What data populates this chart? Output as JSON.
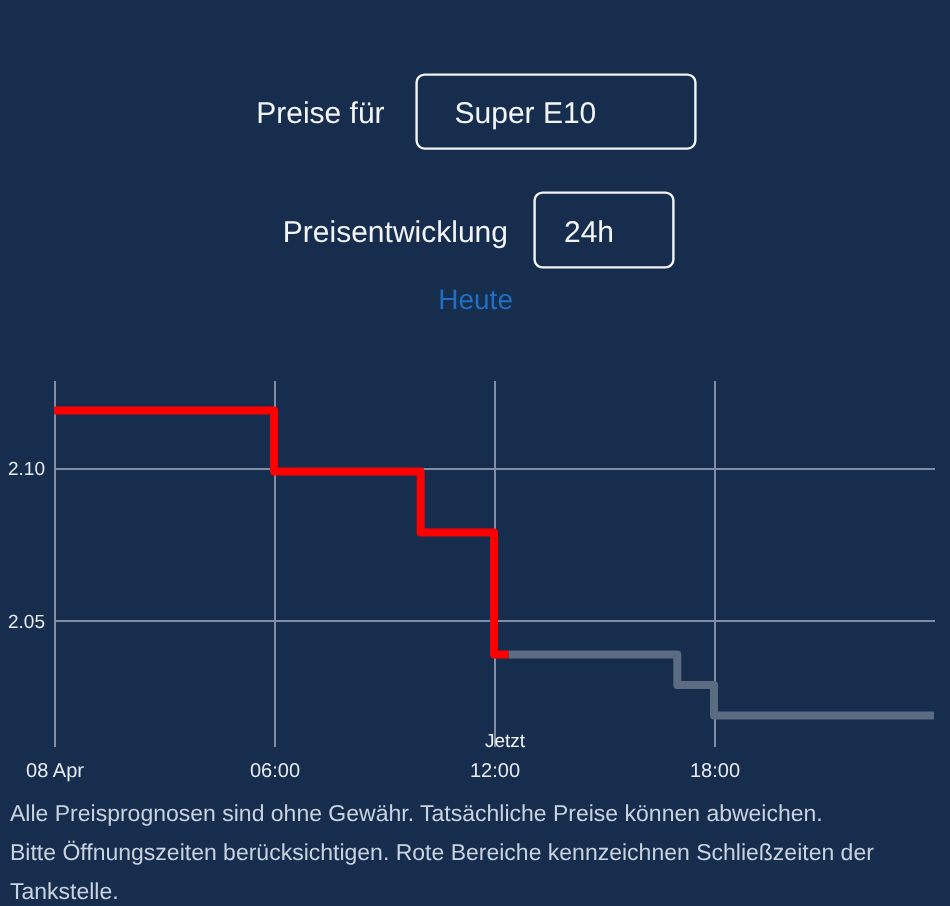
{
  "chart_data": {
    "type": "step",
    "title": "Preisentwicklung",
    "subtitle": "Heute",
    "annotations": [
      "Preise für",
      "Super E10",
      "24h",
      "Jetzt",
      "Alle Preisprognosen sind ohne Gewähr. Tatsächliche Preise können abweichen.",
      "Bitte Öffnungszeiten berücksichtigen. Rote Bereiche kennzeichnen Schließzeiten der Tankstelle."
    ],
    "series": [
      {
        "color": "#ff0000",
        "x": [
          0,
          6,
          10,
          12,
          12.4
        ],
        "values": [
          2.119,
          2.099,
          2.079,
          2.039,
          2.039
        ]
      },
      {
        "color": "#5b6b82",
        "x": [
          12.4,
          17,
          18,
          24
        ],
        "values": [
          2.039,
          2.029,
          2.019,
          2.019
        ]
      }
    ],
    "xlim": [
      0,
      24
    ],
    "xticks": [
      {
        "value": 0,
        "label": "08 Apr"
      },
      {
        "value": 6,
        "label": "06:00"
      },
      {
        "value": 12,
        "label": "12:00"
      },
      {
        "value": 18,
        "label": "18:00"
      }
    ],
    "ylim": [
      2.009,
      2.129
    ],
    "yticks": [
      {
        "value": 2.05,
        "label": "2.05"
      },
      {
        "value": 2.1,
        "label": "2.10"
      }
    ],
    "grid": true,
    "line_style": "solid"
  }
}
